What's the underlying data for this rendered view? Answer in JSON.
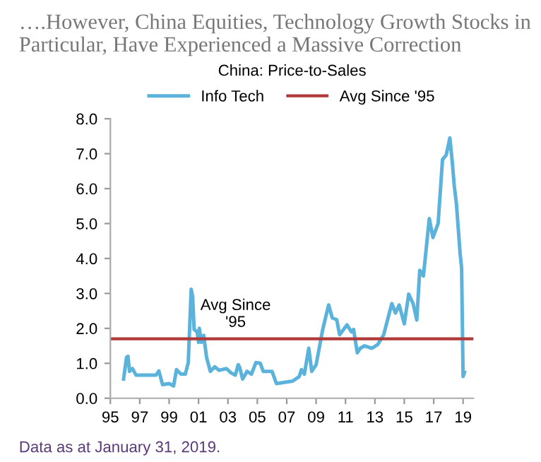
{
  "chart_data": {
    "type": "line",
    "title": "….However, China Equities, Technology Growth Stocks in Particular, Have Experienced a Massive Correction",
    "subtitle": "China: Price-to-Sales",
    "x": [
      1995.9,
      1996.1,
      1996.2,
      1996.3,
      1996.5,
      1996.75,
      1998.1,
      1998.3,
      1998.55,
      1999.0,
      1999.3,
      1999.5,
      1999.8,
      2000.1,
      2000.3,
      2000.5,
      2000.6,
      2000.7,
      2000.9,
      2001.0,
      2001.05,
      2001.2,
      2001.35,
      2001.55,
      2001.8,
      2002.1,
      2002.4,
      2002.9,
      2003.2,
      2003.5,
      2003.7,
      2003.8,
      2004.0,
      2004.3,
      2004.6,
      2004.9,
      2005.2,
      2005.4,
      2006.0,
      2006.3,
      2007.4,
      2007.85,
      2008.0,
      2008.2,
      2008.5,
      2008.7,
      2009.0,
      2009.45,
      2009.85,
      2010.1,
      2010.4,
      2010.6,
      2011.1,
      2011.4,
      2011.55,
      2011.8,
      2012.0,
      2012.3,
      2012.8,
      2013.2,
      2013.6,
      2014.15,
      2014.4,
      2014.65,
      2015.0,
      2015.3,
      2015.6,
      2015.85,
      2016.05,
      2016.3,
      2016.7,
      2016.95,
      2017.3,
      2017.6,
      2017.85,
      2018.1,
      2018.25,
      2018.4,
      2018.55,
      2018.8,
      2018.9,
      2019.0,
      2019.1
    ],
    "series": [
      {
        "name": "Info Tech",
        "color": "#5bb3dc",
        "values": [
          0.55,
          1.17,
          1.2,
          0.77,
          0.85,
          0.66,
          0.66,
          0.78,
          0.39,
          0.42,
          0.35,
          0.82,
          0.69,
          0.69,
          1.02,
          3.12,
          2.9,
          1.97,
          1.9,
          1.6,
          2.0,
          1.6,
          1.8,
          1.16,
          0.77,
          0.9,
          0.8,
          0.85,
          0.73,
          0.66,
          0.96,
          0.88,
          0.55,
          0.77,
          0.69,
          1.02,
          1.0,
          0.77,
          0.77,
          0.42,
          0.49,
          0.62,
          0.82,
          0.69,
          1.43,
          0.77,
          0.96,
          1.97,
          2.67,
          2.3,
          2.25,
          1.82,
          2.1,
          1.9,
          1.97,
          1.3,
          1.43,
          1.5,
          1.43,
          1.54,
          1.82,
          2.71,
          2.44,
          2.67,
          2.13,
          2.98,
          2.71,
          2.24,
          3.66,
          3.5,
          5.14,
          4.6,
          5.0,
          6.83,
          6.96,
          7.45,
          6.83,
          6.08,
          5.55,
          4.13,
          3.72,
          0.62,
          0.75
        ]
      }
    ],
    "ref_lines": [
      {
        "axis": "y",
        "value": 1.7,
        "label": "Avg Since '95",
        "color": "#b03a3a",
        "line_style": "solid"
      }
    ],
    "annotations": [
      "Avg Since\n'95",
      "Data as at January 31, 2019."
    ],
    "xlim": [
      1995,
      2019.7
    ],
    "xticks": [
      {
        "value": 1995,
        "label": "95"
      },
      {
        "value": 1997,
        "label": "97"
      },
      {
        "value": 1999,
        "label": "99"
      },
      {
        "value": 2001,
        "label": "01"
      },
      {
        "value": 2003,
        "label": "03"
      },
      {
        "value": 2005,
        "label": "05"
      },
      {
        "value": 2007,
        "label": "07"
      },
      {
        "value": 2009,
        "label": "09"
      },
      {
        "value": 2011,
        "label": "11"
      },
      {
        "value": 2013,
        "label": "13"
      },
      {
        "value": 2015,
        "label": "15"
      },
      {
        "value": 2017,
        "label": "17"
      },
      {
        "value": 2019,
        "label": "19"
      }
    ],
    "ylim": [
      0,
      8
    ],
    "yticks": [
      {
        "value": 0,
        "label": "0.0"
      },
      {
        "value": 1,
        "label": "1.0"
      },
      {
        "value": 2,
        "label": "2.0"
      },
      {
        "value": 3,
        "label": "3.0"
      },
      {
        "value": 4,
        "label": "4.0"
      },
      {
        "value": 5,
        "label": "5.0"
      },
      {
        "value": 6,
        "label": "6.0"
      },
      {
        "value": 7,
        "label": "7.0"
      },
      {
        "value": 8,
        "label": "8.0"
      }
    ],
    "grid": false,
    "legend": "top",
    "marker": "none",
    "line_style": "solid"
  }
}
